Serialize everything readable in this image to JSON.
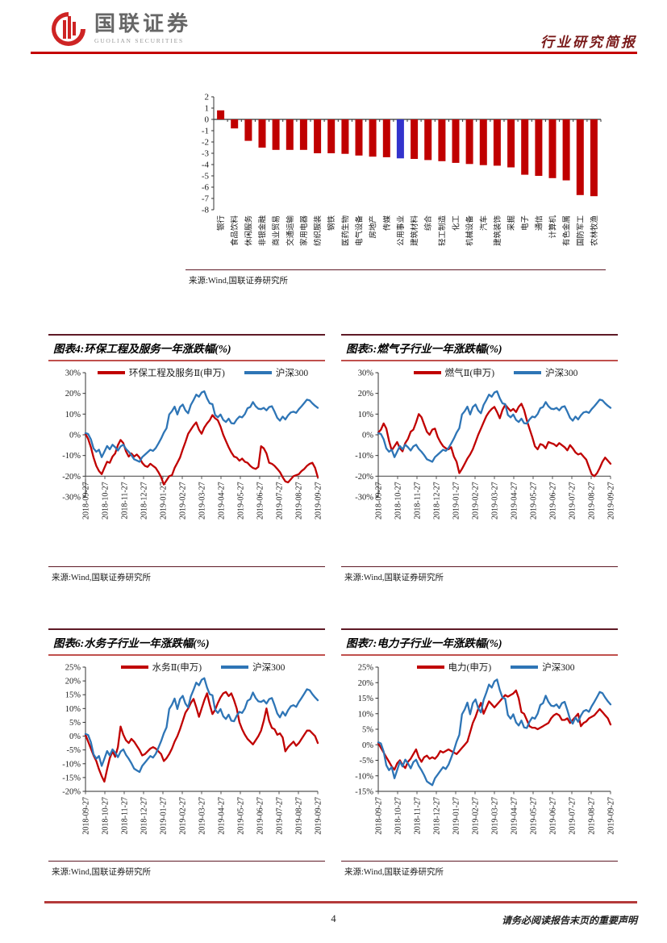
{
  "header": {
    "logo_cn": "国联证券",
    "logo_en": "GUOLIAN SECURITIES",
    "doc_type": "行业研究简报"
  },
  "footer": {
    "page_number": "4",
    "disclaimer": "请务必阅读报告末页的重要声明"
  },
  "colors": {
    "accent_red": "#C00000",
    "line_blue": "#2E75B6",
    "bar_blue": "#3333CC",
    "header_rule": "#C40000",
    "title_rule_dark": "#5E1A26",
    "title_rule_light": "#C0504D",
    "footer_rule": "#B43A3A"
  },
  "chart_data": [
    {
      "type": "bar",
      "categories": [
        "银行",
        "食品饮料",
        "休闲服务",
        "非银金融",
        "商业贸易",
        "交通运输",
        "家用电器",
        "纺织服装",
        "钢铁",
        "医药生物",
        "电气设备",
        "房地产",
        "传媒",
        "公用事业",
        "建筑材料",
        "综合",
        "轻工制造",
        "化工",
        "机械设备",
        "汽车",
        "建筑装饰",
        "采掘",
        "电子",
        "通信",
        "计算机",
        "有色金属",
        "国防军工",
        "农林牧渔"
      ],
      "values": [
        0.8,
        -0.8,
        -1.9,
        -2.5,
        -2.7,
        -2.7,
        -2.7,
        -3.0,
        -3.0,
        -3.05,
        -3.2,
        -3.3,
        -3.35,
        -3.45,
        -3.5,
        -3.6,
        -3.7,
        -3.85,
        -3.95,
        -4.05,
        -4.1,
        -4.25,
        -4.9,
        -5.0,
        -5.2,
        -5.4,
        -6.7,
        -6.8
      ],
      "highlight_category": "公用事业",
      "highlight_index": 13,
      "ylim": [
        -8,
        2
      ],
      "ytick_step": 1,
      "bar_color": "#C00000",
      "highlight_color": "#3333CC",
      "source": "来源:Wind,国联证券研究所"
    },
    {
      "type": "line",
      "figure_label": "图表4:环保工程及服务一年涨跌幅(%)",
      "ylim": [
        -30,
        30
      ],
      "ytick_step": 10,
      "axis_cross": -20,
      "x_ticklabels": [
        "2018-09-27",
        "2018-10-27",
        "2018-11-27",
        "2018-12-27",
        "2019-01-27",
        "2019-02-27",
        "2019-03-27",
        "2019-04-27",
        "2019-05-27",
        "2019-06-27",
        "2019-07-27",
        "2019-08-27",
        "2019-09-27"
      ],
      "series": [
        {
          "name": "环保工程及服务Ⅱ(申万)",
          "color": "#C00000",
          "values": [
            0.5,
            -2,
            -6,
            -11,
            -15,
            -17.5,
            -19,
            -16,
            -13,
            -13.5,
            -10.5,
            -9,
            -5,
            -2.5,
            -4,
            -8,
            -10.5,
            -9,
            -10.5,
            -9.5,
            -11,
            -13.5,
            -15,
            -15.5,
            -14,
            -15,
            -16,
            -18,
            -20.5,
            -24,
            -22,
            -20,
            -19.5,
            -16,
            -13.5,
            -11,
            -7,
            -3.5,
            0.5,
            2.5,
            4.5,
            6,
            2.5,
            0.5,
            3.5,
            5.5,
            7,
            9.5,
            8,
            7,
            4,
            0,
            -3,
            -6,
            -8.5,
            -10.5,
            -11,
            -12.5,
            -11.5,
            -13,
            -13.5,
            -15,
            -16,
            -16.5,
            -15.5,
            -5.5,
            -6.5,
            -9,
            -13.5,
            -14,
            -15,
            -16.5,
            -18,
            -20.5,
            -22.5,
            -23,
            -21.5,
            -20,
            -19.5,
            -19,
            -17.5,
            -16.5,
            -15,
            -14,
            -13.5,
            -16,
            -20.5
          ]
        },
        {
          "name": "沪深300",
          "color": "#2E75B6",
          "values": [
            0.8,
            0.4,
            -2.2,
            -6.6,
            -8.2,
            -7.2,
            -10.8,
            -8.2,
            -5.4,
            -7,
            -4.8,
            -6,
            -7.6,
            -5.6,
            -4.8,
            -6.8,
            -8.2,
            -9.8,
            -11.8,
            -12.4,
            -13,
            -10.8,
            -9.6,
            -8.4,
            -7.2,
            -7.8,
            -6.4,
            -4.2,
            -1.8,
            1,
            3.2,
            9.8,
            11.4,
            13.6,
            9.8,
            13.4,
            14.6,
            11.8,
            10.4,
            14.4,
            16.8,
            19.4,
            18.4,
            20.4,
            21,
            17.6,
            15.2,
            14.8,
            9.6,
            8.4,
            9.8,
            7.2,
            6.2,
            7.8,
            5.6,
            5.4,
            7.4,
            8.8,
            8.4,
            10,
            12.8,
            13.4,
            15.8,
            13.8,
            12.6,
            12.4,
            13,
            11.8,
            13.4,
            13.8,
            11.2,
            8.2,
            6.8,
            8.8,
            7.4,
            9.4,
            10.8,
            11.2,
            10.6,
            12.4,
            13.8,
            15.4,
            17,
            16.6,
            15.2,
            14,
            13
          ]
        }
      ],
      "source": "来源:Wind,国联证券研究所"
    },
    {
      "type": "line",
      "figure_label": "图表5:燃气子行业一年涨跌幅(%)",
      "ylim": [
        -30,
        30
      ],
      "ytick_step": 10,
      "axis_cross": -20,
      "x_ticklabels": [
        "2018-09-27",
        "2018-10-27",
        "2018-11-27",
        "2018-12-27",
        "2019-01-27",
        "2019-02-27",
        "2019-03-27",
        "2019-04-27",
        "2019-05-27",
        "2019-06-27",
        "2019-07-27",
        "2019-08-27",
        "2019-09-27"
      ],
      "series": [
        {
          "name": "燃气Ⅱ(申万)",
          "color": "#C00000",
          "values": [
            1,
            2.5,
            5.5,
            3,
            -3,
            -7.5,
            -5.5,
            -3.5,
            -6.5,
            -8,
            -4,
            -2,
            1.5,
            2.5,
            6,
            10,
            8.5,
            5,
            1.5,
            0,
            2.5,
            3,
            -1,
            -3.5,
            -5.5,
            -6.5,
            -7,
            -6,
            -10.5,
            -13,
            -18.5,
            -16.5,
            -14,
            -11.5,
            -9.5,
            -7,
            -3.5,
            0,
            3,
            6,
            9,
            11,
            12.5,
            13.5,
            11,
            8,
            12,
            14.5,
            13,
            11.5,
            12.5,
            11,
            13.5,
            15,
            12,
            7,
            3,
            -1,
            -5.5,
            -7,
            -4.5,
            -5,
            -6.5,
            -3.5,
            -4,
            -4.5,
            -5.5,
            -4,
            -5,
            -6,
            -7.5,
            -5,
            -6.5,
            -8.5,
            -9.5,
            -9,
            -10.5,
            -12,
            -15.5,
            -19,
            -20,
            -18.5,
            -16,
            -13,
            -11,
            -12.5,
            -14
          ]
        },
        {
          "name": "沪深300",
          "color": "#2E75B6",
          "values": [
            0.8,
            0.4,
            -2.2,
            -6.6,
            -8.2,
            -7.2,
            -10.8,
            -8.2,
            -5.4,
            -7,
            -4.8,
            -6,
            -7.6,
            -5.6,
            -4.8,
            -6.8,
            -8.2,
            -9.8,
            -11.8,
            -12.4,
            -13,
            -10.8,
            -9.6,
            -8.4,
            -7.2,
            -7.8,
            -6.4,
            -4.2,
            -1.8,
            1,
            3.2,
            9.8,
            11.4,
            13.6,
            9.8,
            13.4,
            14.6,
            11.8,
            10.4,
            14.4,
            16.8,
            19.4,
            18.4,
            20.4,
            21,
            17.6,
            15.2,
            14.8,
            9.6,
            8.4,
            9.8,
            7.2,
            6.2,
            7.8,
            5.6,
            5.4,
            7.4,
            8.8,
            8.4,
            10,
            12.8,
            13.4,
            15.8,
            13.8,
            12.6,
            12.4,
            13,
            11.8,
            13.4,
            13.8,
            11.2,
            8.2,
            6.8,
            8.8,
            7.4,
            9.4,
            10.8,
            11.2,
            10.6,
            12.4,
            13.8,
            15.4,
            17,
            16.6,
            15.2,
            14,
            13
          ]
        }
      ],
      "source": "来源:Wind,国联证券研究所"
    },
    {
      "type": "line",
      "figure_label": "图表6:水务子行业一年涨跌幅(%)",
      "ylim": [
        -20,
        25
      ],
      "ytick_step": 5,
      "axis_cross": -20,
      "x_ticklabels": [
        "2018-09-27",
        "2018-10-27",
        "2018-11-27",
        "2018-12-27",
        "2019-01-27",
        "2019-02-27",
        "2019-03-27",
        "2019-04-27",
        "2019-05-27",
        "2019-06-27",
        "2019-07-27",
        "2019-08-27",
        "2019-09-27"
      ],
      "series": [
        {
          "name": "水务Ⅱ(申万)",
          "color": "#C00000",
          "values": [
            0.5,
            -2,
            -4.5,
            -7,
            -9,
            -12,
            -14.5,
            -16.5,
            -12,
            -8,
            -5.5,
            -7.5,
            -4,
            3.5,
            0.5,
            -1.5,
            -2.5,
            -1,
            -2,
            -3.5,
            -5,
            -7,
            -6.5,
            -5.5,
            -4.5,
            -4,
            -4.5,
            -5.5,
            -6.5,
            -9,
            -8,
            -6.5,
            -4.5,
            -2,
            0,
            2.5,
            5.5,
            8.5,
            10,
            12,
            13.5,
            10.5,
            7,
            10,
            13,
            15.5,
            11.5,
            8,
            9.5,
            12,
            14,
            15.5,
            16,
            14.5,
            15.5,
            13,
            10,
            5,
            2.5,
            0.5,
            -1,
            -2,
            -3,
            -1.5,
            0,
            2,
            5.5,
            10,
            5.5,
            3,
            2.5,
            0.5,
            1,
            -0.5,
            -5.5,
            -4,
            -3,
            -2,
            -3.5,
            -2.5,
            -1,
            0.5,
            2,
            2,
            1,
            0,
            -2.5
          ]
        },
        {
          "name": "沪深300",
          "color": "#2E75B6",
          "values": [
            0.8,
            0.4,
            -2.2,
            -6.6,
            -8.2,
            -7.2,
            -10.8,
            -8.2,
            -5.4,
            -7,
            -4.8,
            -6,
            -7.6,
            -5.6,
            -4.8,
            -6.8,
            -8.2,
            -9.8,
            -11.8,
            -12.4,
            -13,
            -10.8,
            -9.6,
            -8.4,
            -7.2,
            -7.8,
            -6.4,
            -4.2,
            -1.8,
            1,
            3.2,
            9.8,
            11.4,
            13.6,
            9.8,
            13.4,
            14.6,
            11.8,
            10.4,
            14.4,
            16.8,
            19.4,
            18.4,
            20.4,
            21,
            17.6,
            15.2,
            14.8,
            9.6,
            8.4,
            9.8,
            7.2,
            6.2,
            7.8,
            5.6,
            5.4,
            7.4,
            8.8,
            8.4,
            10,
            12.8,
            13.4,
            15.8,
            13.8,
            12.6,
            12.4,
            13,
            11.8,
            13.4,
            13.8,
            11.2,
            8.2,
            6.8,
            8.8,
            7.4,
            9.4,
            10.8,
            11.2,
            10.6,
            12.4,
            13.8,
            15.4,
            17,
            16.6,
            15.2,
            14,
            13
          ]
        }
      ],
      "source": "来源:Wind,国联证券研究所"
    },
    {
      "type": "line",
      "figure_label": "图表7:电力子行业一年涨跌幅(%)",
      "ylim": [
        -15,
        25
      ],
      "ytick_step": 5,
      "axis_cross": -15,
      "x_ticklabels": [
        "2018-09-27",
        "2018-10-27",
        "2018-11-27",
        "2018-12-27",
        "2019-01-27",
        "2019-02-27",
        "2019-03-27",
        "2019-04-27",
        "2019-05-27",
        "2019-06-27",
        "2019-07-27",
        "2019-08-27",
        "2019-09-27"
      ],
      "series": [
        {
          "name": "电力(申万)",
          "color": "#C00000",
          "values": [
            0.5,
            -1,
            -2.5,
            -4,
            -5.5,
            -7,
            -8,
            -6,
            -5,
            -6.5,
            -7.5,
            -5.5,
            -4.5,
            -3,
            -1.5,
            -4,
            -5.5,
            -4,
            -3.5,
            -4.5,
            -4,
            -4.5,
            -3.5,
            -2,
            -2.5,
            -2,
            -1.5,
            -2,
            -2.5,
            -3,
            -2,
            -1,
            0,
            1,
            4,
            7,
            9,
            11.5,
            13.5,
            10,
            12,
            14,
            13,
            12,
            13,
            14,
            15,
            16,
            15.5,
            16,
            16.5,
            17.5,
            15,
            10.5,
            10,
            8,
            6,
            5.5,
            5.5,
            5,
            5.5,
            6,
            6.5,
            7,
            8.5,
            9.5,
            10,
            9.5,
            8,
            8,
            8.5,
            7,
            8,
            9,
            10,
            6,
            7,
            7.5,
            8.5,
            9,
            9.5,
            10.5,
            11.5,
            10.5,
            9.5,
            8.5,
            6.5
          ]
        },
        {
          "name": "沪深300",
          "color": "#2E75B6",
          "values": [
            0.8,
            0.4,
            -2.2,
            -6.6,
            -8.2,
            -7.2,
            -10.8,
            -8.2,
            -5.4,
            -7,
            -4.8,
            -6,
            -7.6,
            -5.6,
            -4.8,
            -6.8,
            -8.2,
            -9.8,
            -11.8,
            -12.4,
            -13,
            -10.8,
            -9.6,
            -8.4,
            -7.2,
            -7.8,
            -6.4,
            -4.2,
            -1.8,
            1,
            3.2,
            9.8,
            11.4,
            13.6,
            9.8,
            13.4,
            14.6,
            11.8,
            10.4,
            14.4,
            16.8,
            19.4,
            18.4,
            20.4,
            21,
            17.6,
            15.2,
            14.8,
            9.6,
            8.4,
            9.8,
            7.2,
            6.2,
            7.8,
            5.6,
            5.4,
            7.4,
            8.8,
            8.4,
            10,
            12.8,
            13.4,
            15.8,
            13.8,
            12.6,
            12.4,
            13,
            11.8,
            13.4,
            13.8,
            11.2,
            8.2,
            6.8,
            8.8,
            7.4,
            9.4,
            10.8,
            11.2,
            10.6,
            12.4,
            13.8,
            15.4,
            17,
            16.6,
            15.2,
            14,
            13
          ]
        }
      ],
      "source": "来源:Wind,国联证券研究所"
    }
  ]
}
